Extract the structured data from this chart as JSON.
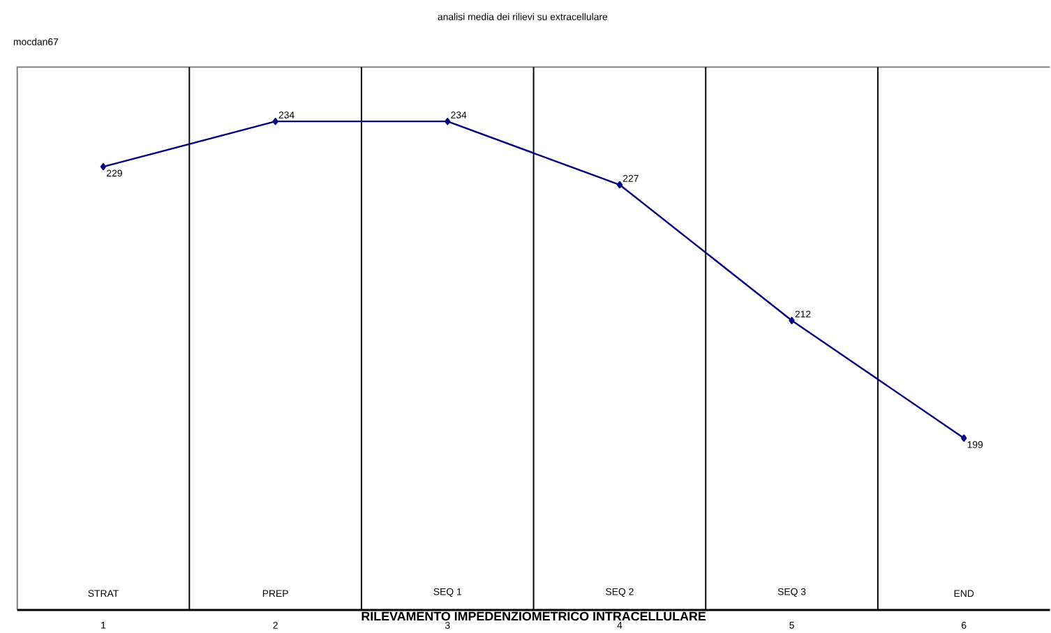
{
  "chart_data": {
    "type": "line",
    "title": "analisi media dei rilievi su extracellulare",
    "xlabel": "RILEVAMENTO IMPEDENZIOMETRICO  INTRACELLULARE",
    "annotations": [
      "mocdan67",
      "STRAT",
      "PREP",
      "SEQ 1",
      "SEQ 2",
      "SEQ 3",
      "END"
    ],
    "x": [
      1,
      2,
      3,
      4,
      5,
      6
    ],
    "series": [
      {
        "color": "#000080",
        "values": [
          229,
          234,
          234,
          227,
          212,
          199
        ]
      }
    ],
    "xlim": [
      0.5,
      6.5
    ],
    "xticks": [
      1,
      2,
      3,
      4,
      5,
      6
    ],
    "ylim": [
      180,
      240
    ],
    "ref_lines": [
      {
        "axis": "x",
        "value": 1.5,
        "color": "#000000"
      },
      {
        "axis": "x",
        "value": 2.5,
        "color": "#000000"
      },
      {
        "axis": "x",
        "value": 3.5,
        "color": "#000000"
      },
      {
        "axis": "x",
        "value": 4.5,
        "color": "#000000"
      },
      {
        "axis": "x",
        "value": 5.5,
        "color": "#000000"
      }
    ],
    "data_labels": true,
    "legend": false,
    "grid": false,
    "marker": "diamond",
    "line_style": "solid"
  }
}
